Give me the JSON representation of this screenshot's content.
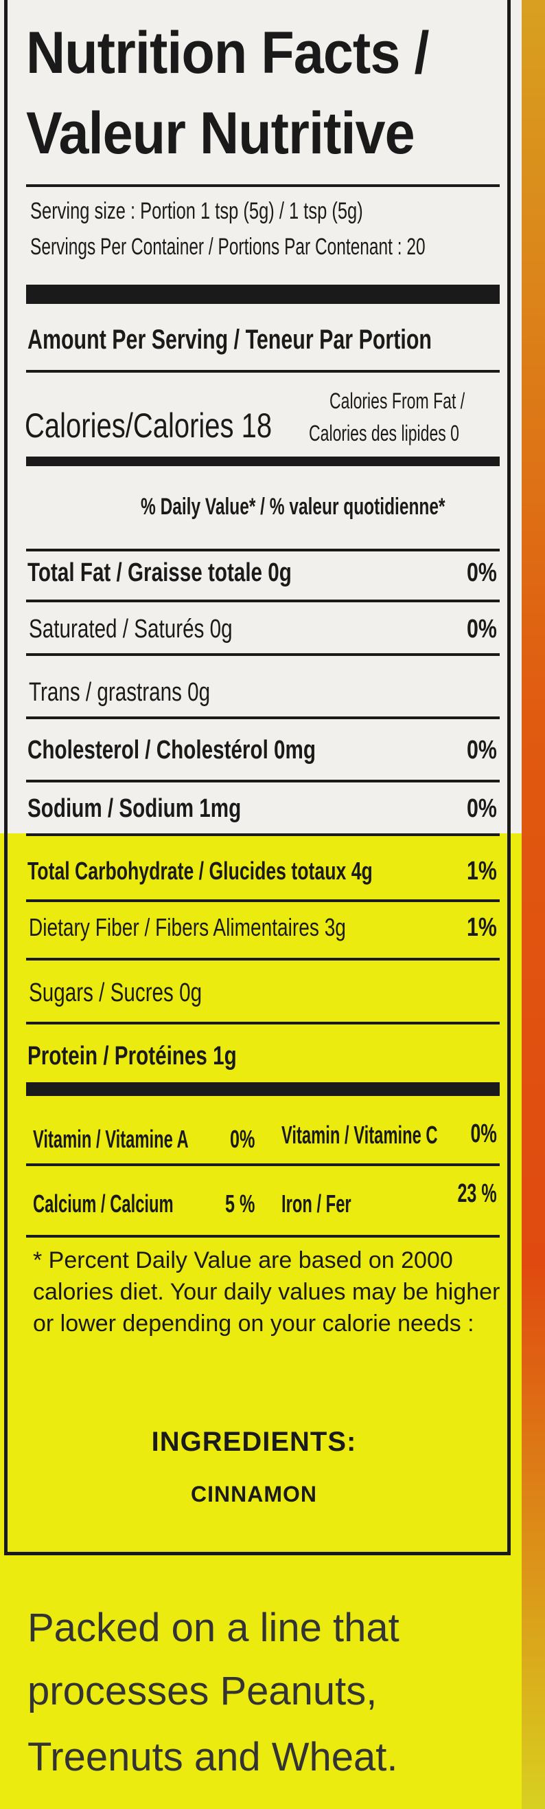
{
  "label": {
    "title_line1": "Nutrition Facts /",
    "title_line2": "Valeur Nutritive",
    "serving_size": "Serving size : Portion 1 tsp (5g) / 1 tsp (5g)",
    "servings_per_container": "Servings Per Container / Portions Par Contenant : 20",
    "amount_per_serving": "Amount Per Serving / Teneur Par Portion",
    "calories": "Calories/Calories 18",
    "calories_from_fat_1": "Calories From Fat /",
    "calories_from_fat_2": "Calories des lipides 0",
    "daily_value_header": "% Daily Value* / % valeur quotidienne*",
    "nutrients": [
      {
        "label": "Total Fat / Graisse totale 0g",
        "pct": "0%"
      },
      {
        "label": "Saturated / Saturés 0g",
        "pct": "0%"
      },
      {
        "label": "Trans / grastrans 0g",
        "pct": ""
      },
      {
        "label": "Cholesterol / Cholestérol 0mg",
        "pct": "0%"
      },
      {
        "label": "Sodium / Sodium 1mg",
        "pct": "0%"
      },
      {
        "label": "Total Carbohydrate / Glucides totaux 4g",
        "pct": "1%"
      },
      {
        "label": "Dietary Fiber / Fibers Alimentaires 3g",
        "pct": "1%"
      },
      {
        "label": "Sugars / Sucres 0g",
        "pct": ""
      },
      {
        "label": "Protein / Protéines 1g",
        "pct": ""
      }
    ],
    "vitamins": {
      "vit_a_label": "Vitamin / Vitamine A",
      "vit_a_pct": "0%",
      "vit_c_label": "Vitamin / Vitamine C",
      "vit_c_pct": "0%",
      "calcium_label": "Calcium / Calcium",
      "calcium_pct": "5 %",
      "iron_label": "Iron / Fer",
      "iron_pct": "23 %"
    },
    "footnote": "* Percent Daily Value are based on 2000 calories diet. Your daily values may be higher or lower depending on your calorie needs :",
    "ingredients_title": "INGREDIENTS:",
    "ingredients": "CINNAMON"
  },
  "allergen": {
    "line1": "Packed on a line that",
    "line2": "processes Peanuts,",
    "line3": "Treenuts and Wheat."
  },
  "colors": {
    "label_white": "#f1f0ec",
    "label_yellow": "#eceb10",
    "package_orange": "#e05a10",
    "ink": "#1a1a1a"
  }
}
